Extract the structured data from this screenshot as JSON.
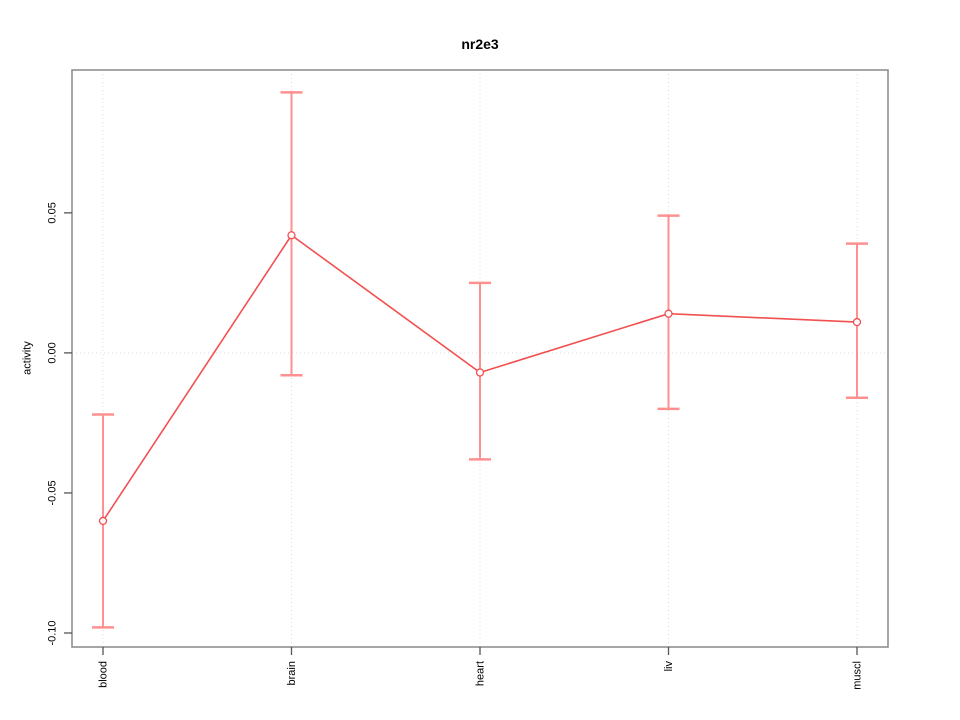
{
  "chart_data": {
    "type": "line",
    "title": "nr2e3",
    "xlabel": "",
    "ylabel": "activity",
    "categories": [
      "blood",
      "brain",
      "heart",
      "liv",
      "muscl"
    ],
    "series": [
      {
        "name": "activity",
        "values": [
          -0.06,
          0.042,
          -0.007,
          0.014,
          0.011
        ],
        "upper": [
          -0.022,
          0.093,
          0.025,
          0.049,
          0.039
        ],
        "lower": [
          -0.098,
          -0.008,
          -0.038,
          -0.02,
          -0.016
        ]
      }
    ],
    "yticks": [
      -0.1,
      -0.05,
      0.0,
      0.05
    ],
    "ytick_labels": [
      "-0.10",
      "-0.05",
      "0.00",
      "0.05"
    ],
    "ylim": [
      -0.105,
      0.101
    ],
    "grid": {
      "vertical_at_categories": true,
      "horizontal_at_zero": true,
      "style": "dotted"
    },
    "legend_position": "none",
    "marker": "open-circle",
    "colors": {
      "line": "#f25050",
      "errorbar": "#ff9090",
      "marker_stroke": "#f25050",
      "marker_fill": "#ffffff",
      "box": "#909090",
      "tick": "#555555",
      "grid": "#dcdcdc",
      "text": "#000000",
      "background": "#ffffff"
    }
  }
}
